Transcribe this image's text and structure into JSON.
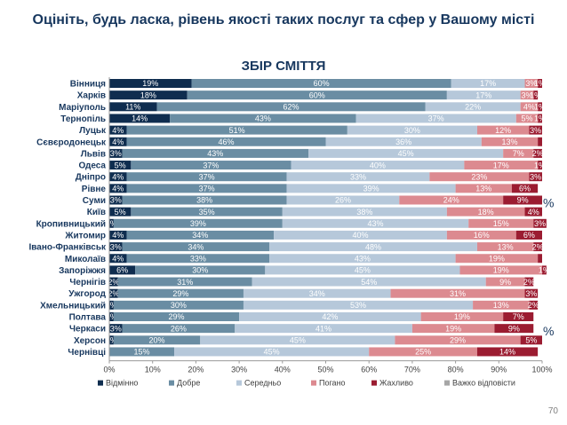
{
  "page": {
    "title": "Оцініть, будь ласка, рівень якості таких послуг та сфер у Вашому місті",
    "page_number": "70"
  },
  "chart_data": {
    "type": "bar",
    "orientation": "horizontal",
    "stacked": true,
    "normalized": true,
    "title": "ЗБІР СМІТТЯ",
    "categories": [
      "Вінниця",
      "Харків",
      "Маріуполь",
      "Тернопіль",
      "Луцьк",
      "Сєвєродонецьк",
      "Львів",
      "Одеса",
      "Дніпро",
      "Рівне",
      "Суми",
      "Київ",
      "Кропивницький",
      "Житомир",
      "Івано-Франківськ",
      "Миколаїв",
      "Запоріжжя",
      "Чернігів",
      "Ужгород",
      "Хмельницький",
      "Полтава",
      "Черкаси",
      "Херсон",
      "Чернівці"
    ],
    "series": [
      {
        "name": "Відмінно",
        "color": "#0f2d4f",
        "values": [
          19,
          18,
          11,
          14,
          4,
          4,
          3,
          5,
          4,
          4,
          3,
          5,
          1,
          4,
          3,
          4,
          6,
          2,
          2,
          1,
          1,
          3,
          1,
          0
        ]
      },
      {
        "name": "Добре",
        "color": "#6a8da3",
        "values": [
          60,
          60,
          62,
          43,
          51,
          46,
          43,
          37,
          37,
          37,
          38,
          35,
          39,
          34,
          34,
          33,
          30,
          31,
          29,
          30,
          29,
          26,
          20,
          15
        ]
      },
      {
        "name": "Середньо",
        "color": "#b6c8da",
        "values": [
          17,
          17,
          22,
          37,
          30,
          36,
          45,
          40,
          33,
          39,
          26,
          38,
          43,
          40,
          48,
          43,
          45,
          54,
          34,
          53,
          42,
          41,
          45,
          45
        ]
      },
      {
        "name": "Погано",
        "color": "#dc8a90",
        "values": [
          3,
          3,
          4,
          5,
          12,
          13,
          7,
          17,
          23,
          13,
          24,
          18,
          15,
          16,
          13,
          19,
          19,
          9,
          31,
          13,
          19,
          19,
          29,
          25
        ]
      },
      {
        "name": "Жахливо",
        "color": "#9b1c31",
        "values": [
          1,
          1,
          1,
          1,
          3,
          1,
          2,
          1,
          3,
          6,
          9,
          4,
          3,
          6,
          2,
          1,
          1,
          2,
          3,
          2,
          7,
          9,
          5,
          14
        ]
      },
      {
        "name": "Важко відповісти",
        "color": "#a6a6a6",
        "values": [
          0,
          0,
          0,
          0,
          0,
          0,
          0,
          0,
          0,
          0,
          0,
          0,
          0,
          0,
          0,
          0,
          0,
          0,
          0,
          0,
          0,
          0,
          0,
          0
        ]
      }
    ],
    "value_labels": [
      [
        "19%",
        "60%",
        "17%",
        "3%",
        "1%",
        ""
      ],
      [
        "18%",
        "60%",
        "17%",
        "3%",
        "1%",
        ""
      ],
      [
        "11%",
        "62%",
        "22%",
        "4%",
        "1%",
        ""
      ],
      [
        "14%",
        "43%",
        "37%",
        "5%",
        "1%",
        ""
      ],
      [
        "4%",
        "51%",
        "30%",
        "12%",
        "3%",
        ""
      ],
      [
        "4%",
        "46%",
        "36%",
        "13%",
        "",
        ""
      ],
      [
        "3%",
        "43%",
        "45%",
        "7%",
        "2%",
        ""
      ],
      [
        "5%",
        "37%",
        "40%",
        "17%",
        "1%",
        ""
      ],
      [
        "4%",
        "37%",
        "33%",
        "23%",
        "3%",
        ""
      ],
      [
        "4%",
        "37%",
        "39%",
        "13%",
        "6%",
        ""
      ],
      [
        "3%",
        "38%",
        "26%",
        "24%",
        "9%",
        ""
      ],
      [
        "5%",
        "35%",
        "38%",
        "18%",
        "4%",
        ""
      ],
      [
        "1%",
        "39%",
        "43%",
        "15%",
        "3%",
        ""
      ],
      [
        "4%",
        "34%",
        "40%",
        "16%",
        "6%",
        ""
      ],
      [
        "3%",
        "34%",
        "48%",
        "13%",
        "2%",
        ""
      ],
      [
        "4%",
        "33%",
        "43%",
        "19%",
        "",
        ""
      ],
      [
        "6%",
        "30%",
        "45%",
        "19%",
        "1%",
        ""
      ],
      [
        "2%",
        "31%",
        "54%",
        "9%",
        "2%",
        ""
      ],
      [
        "2%",
        "29%",
        "34%",
        "31%",
        "3%",
        ""
      ],
      [
        "1%",
        "30%",
        "53%",
        "13%",
        "2%",
        ""
      ],
      [
        "1%",
        "29%",
        "42%",
        "19%",
        "7%",
        ""
      ],
      [
        "3%",
        "26%",
        "41%",
        "19%",
        "9%",
        ""
      ],
      [
        "1%",
        "20%",
        "45%",
        "29%",
        "5%",
        ""
      ],
      [
        "",
        "15%",
        "45%",
        "25%",
        "14%",
        ""
      ]
    ],
    "x_ticks": [
      "0%",
      "10%",
      "20%",
      "30%",
      "40%",
      "50%",
      "60%",
      "70%",
      "80%",
      "90%",
      "100%"
    ],
    "xlim": [
      0,
      100
    ],
    "grid": false,
    "legend_position": "bottom",
    "stray_marks": [
      {
        "row": 10,
        "text": "%"
      },
      {
        "row": 21,
        "text": "%"
      }
    ]
  }
}
